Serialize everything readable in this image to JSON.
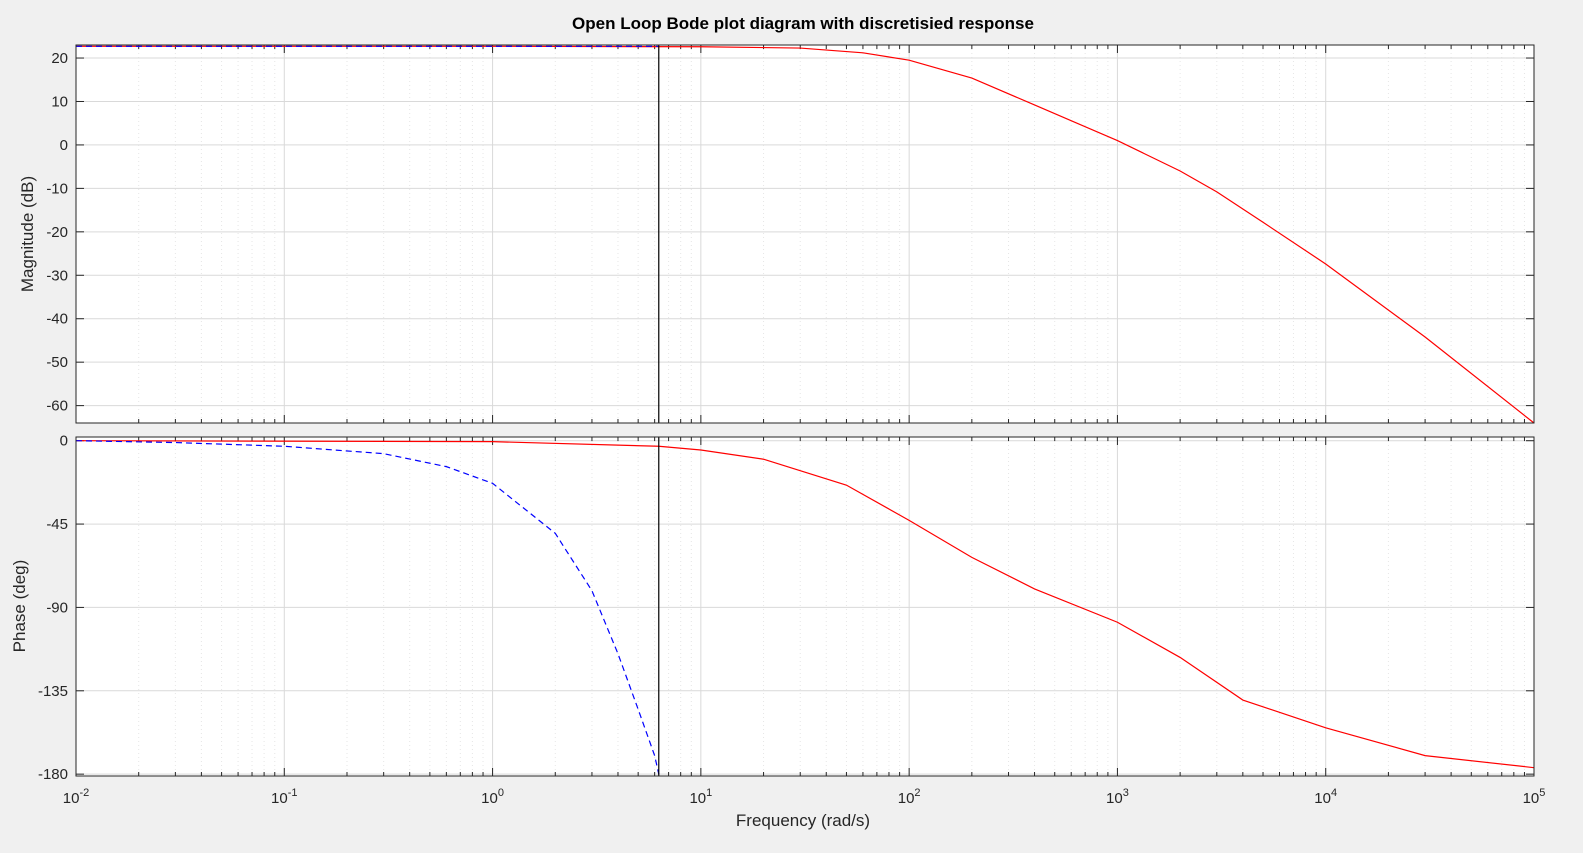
{
  "chart_data": {
    "type": "line",
    "title": "Open Loop Bode plot diagram with discretisied response",
    "xlabel": "Frequency  (rad/s)",
    "xscale": "log",
    "xlim": [
      0.01,
      100000
    ],
    "x_ticks": [
      {
        "value": 0.01,
        "base": "10",
        "exp": "-2"
      },
      {
        "value": 0.1,
        "base": "10",
        "exp": "-1"
      },
      {
        "value": 1,
        "base": "10",
        "exp": "0"
      },
      {
        "value": 10,
        "base": "10",
        "exp": "1"
      },
      {
        "value": 100,
        "base": "10",
        "exp": "2"
      },
      {
        "value": 1000,
        "base": "10",
        "exp": "3"
      },
      {
        "value": 10000,
        "base": "10",
        "exp": "4"
      },
      {
        "value": 100000,
        "base": "10",
        "exp": "5"
      }
    ],
    "grid": true,
    "vertical_marker": {
      "x": 6.28,
      "color": "#000000"
    },
    "subplots": [
      {
        "name": "magnitude",
        "ylabel": "Magnitude (dB)",
        "ylim": [
          -64,
          23
        ],
        "yticks": [
          20,
          10,
          0,
          -10,
          -20,
          -30,
          -40,
          -50,
          -60
        ],
        "ytick_labels": [
          "20",
          "10",
          "0",
          "-10",
          "-20",
          "-30",
          "-40",
          "-50",
          "-60"
        ],
        "series": [
          {
            "color": "#ff0000",
            "style": "solid",
            "x": [
              0.01,
              1,
              10,
              30,
              60,
              100,
              200,
              400,
              1000,
              2000,
              3000,
              5000,
              10000,
              30000,
              100000
            ],
            "y": [
              22.7,
              22.7,
              22.6,
              22.3,
              21.2,
              19.5,
              15.4,
              9.2,
              1.0,
              -6.0,
              -10.8,
              -17.8,
              -27.4,
              -44.2,
              -64.0
            ]
          },
          {
            "color": "#0000ff",
            "style": "dashed",
            "x": [
              0.01,
              6.28
            ],
            "y": [
              22.7,
              22.7
            ]
          }
        ]
      },
      {
        "name": "phase",
        "ylabel": "Phase (deg)",
        "ylim": [
          -181,
          2
        ],
        "yticks": [
          0,
          -45,
          -90,
          -135,
          -180
        ],
        "ytick_labels": [
          "0",
          "-45",
          "-90",
          "-135",
          "-180"
        ],
        "series": [
          {
            "color": "#ff0000",
            "style": "solid",
            "x": [
              0.01,
              1,
              6.28,
              10,
              20,
              50,
              100,
              200,
              400,
              1000,
              2000,
              4000,
              10000,
              30000,
              100000
            ],
            "y": [
              0,
              -0.5,
              -3,
              -5,
              -10,
              -24,
              -43,
              -63,
              -80,
              -98,
              -117,
              -140,
              -155,
              -170,
              -176.5
            ]
          },
          {
            "color": "#0000ff",
            "style": "dashed",
            "x": [
              0.01,
              0.03,
              0.1,
              0.3,
              0.6,
              1,
              2,
              3,
              4,
              5,
              6,
              6.28
            ],
            "y": [
              0,
              -1,
              -3,
              -7,
              -14,
              -23,
              -50,
              -81,
              -115,
              -145,
              -170,
              -180
            ]
          }
        ]
      }
    ]
  }
}
